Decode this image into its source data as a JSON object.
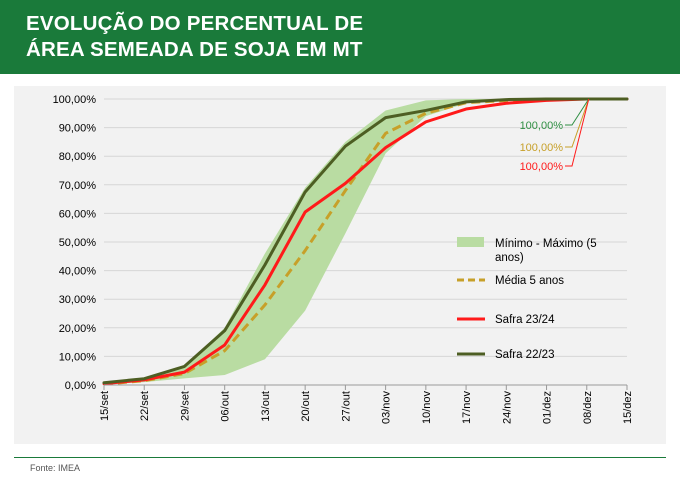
{
  "header": {
    "title_line1": "EVOLUÇÃO DO PERCENTUAL DE",
    "title_line2": "ÁREA SEMEADA DE SOJA EM MT"
  },
  "source": "Fonte: IMEA",
  "colors": {
    "header_bg": "#1a7a3a",
    "range_fill": "#b9dca2",
    "media": "#c7a029",
    "safra_2324": "#ff1a1a",
    "safra_2223": "#4d5e23",
    "label_2223": "#2f8f43",
    "label_media": "#c7a029",
    "label_2324": "#ff1a1a"
  },
  "chart_data": {
    "type": "line",
    "title": "EVOLUÇÃO DO PERCENTUAL DE ÁREA SEMEADA DE SOJA EM MT",
    "xlabel": "",
    "ylabel": "",
    "categories": [
      "15/set",
      "22/set",
      "29/set",
      "06/out",
      "13/out",
      "20/out",
      "27/out",
      "03/nov",
      "10/nov",
      "17/nov",
      "24/nov",
      "01/dez",
      "08/dez",
      "15/dez"
    ],
    "ylim": [
      0,
      100
    ],
    "yticks": [
      0,
      10,
      20,
      30,
      40,
      50,
      60,
      70,
      80,
      90,
      100
    ],
    "ytick_labels": [
      "0,00%",
      "10,00%",
      "20,00%",
      "30,00%",
      "40,00%",
      "50,00%",
      "60,00%",
      "70,00%",
      "80,00%",
      "90,00%",
      "100,00%"
    ],
    "grid": true,
    "legend_position": "right",
    "range": {
      "name": "Mínimo - Máximo (5 anos)",
      "min": [
        0.2,
        1.0,
        2.3,
        3.5,
        9.0,
        26.0,
        53.0,
        81.0,
        94.0,
        98.5,
        99.5,
        99.9,
        100,
        100
      ],
      "max": [
        0.9,
        2.3,
        6.5,
        20.0,
        46.0,
        69.0,
        85.0,
        96.0,
        99.5,
        100,
        100,
        100,
        100,
        100
      ]
    },
    "series": [
      {
        "name": "Média 5 anos",
        "style": "dashed",
        "values": [
          0.3,
          1.5,
          4.0,
          12.0,
          28.0,
          47.0,
          68.0,
          88.0,
          95.0,
          98.7,
          99.5,
          99.9,
          100,
          100
        ]
      },
      {
        "name": "Safra 23/24",
        "style": "solid",
        "values": [
          0.5,
          1.8,
          4.5,
          14.0,
          35.0,
          60.5,
          70.5,
          83.0,
          92.0,
          96.5,
          98.5,
          99.5,
          100,
          100
        ]
      },
      {
        "name": "Safra 22/23",
        "style": "solid",
        "values": [
          0.8,
          2.2,
          6.5,
          19.0,
          42.0,
          67.5,
          83.5,
          93.5,
          96.0,
          99.0,
          99.8,
          100,
          100,
          100
        ]
      }
    ],
    "annotations": [
      {
        "text": "100,00%",
        "series": "Safra 22/23"
      },
      {
        "text": "100,00%",
        "series": "Média 5 anos"
      },
      {
        "text": "100,00%",
        "series": "Safra 23/24"
      }
    ]
  }
}
